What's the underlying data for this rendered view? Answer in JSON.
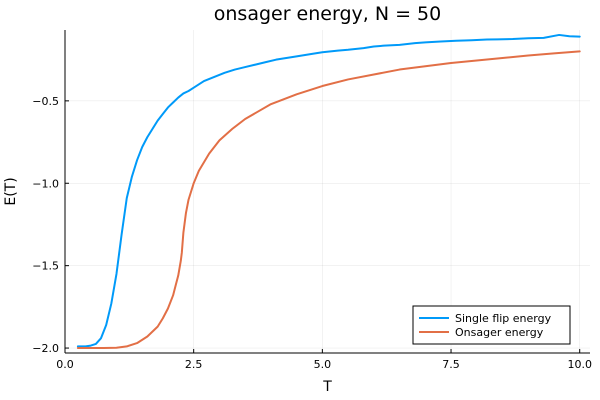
{
  "chart_data": {
    "type": "line",
    "title": "onsager energy, N = 50",
    "xlabel": "T",
    "ylabel": "E(T)",
    "xlim": [
      0,
      10.2
    ],
    "ylim": [
      -2.03,
      -0.07
    ],
    "xticks": [
      0.0,
      2.5,
      5.0,
      7.5,
      10.0
    ],
    "xtick_labels": [
      "0.0",
      "2.5",
      "5.0",
      "7.5",
      "10.0"
    ],
    "yticks": [
      -2.0,
      -1.5,
      -1.0,
      -0.5
    ],
    "ytick_labels": [
      "−2.0",
      "−1.5",
      "−1.0",
      "−0.5"
    ],
    "grid": true,
    "legend_position": "bottom-right",
    "series": [
      {
        "name": "Single flip energy",
        "color": "#009AF9",
        "x": [
          0.25,
          0.4,
          0.5,
          0.6,
          0.7,
          0.8,
          0.9,
          1.0,
          1.1,
          1.2,
          1.3,
          1.4,
          1.5,
          1.6,
          1.7,
          1.8,
          1.9,
          2.0,
          2.1,
          2.2,
          2.3,
          2.4,
          2.5,
          2.7,
          2.9,
          3.1,
          3.3,
          3.5,
          3.7,
          3.9,
          4.1,
          4.3,
          4.5,
          4.8,
          5.0,
          5.3,
          5.5,
          5.8,
          6.0,
          6.2,
          6.5,
          6.8,
          7.0,
          7.3,
          7.6,
          7.9,
          8.2,
          8.4,
          8.7,
          9.0,
          9.3,
          9.6,
          9.8,
          10.0
        ],
        "y": [
          -1.99,
          -1.99,
          -1.985,
          -1.975,
          -1.94,
          -1.86,
          -1.73,
          -1.55,
          -1.31,
          -1.09,
          -0.96,
          -0.86,
          -0.78,
          -0.72,
          -0.67,
          -0.62,
          -0.58,
          -0.54,
          -0.51,
          -0.48,
          -0.455,
          -0.44,
          -0.42,
          -0.38,
          -0.355,
          -0.33,
          -0.31,
          -0.295,
          -0.28,
          -0.265,
          -0.25,
          -0.24,
          -0.23,
          -0.215,
          -0.205,
          -0.195,
          -0.19,
          -0.18,
          -0.17,
          -0.165,
          -0.16,
          -0.15,
          -0.145,
          -0.14,
          -0.135,
          -0.132,
          -0.128,
          -0.127,
          -0.125,
          -0.12,
          -0.118,
          -0.1,
          -0.108,
          -0.11
        ]
      },
      {
        "name": "Onsager energy",
        "color": "#E26F46",
        "x": [
          0.25,
          0.5,
          0.75,
          1.0,
          1.2,
          1.4,
          1.6,
          1.8,
          1.9,
          2.0,
          2.1,
          2.15,
          2.2,
          2.25,
          2.27,
          2.3,
          2.35,
          2.4,
          2.5,
          2.6,
          2.8,
          3.0,
          3.25,
          3.5,
          3.75,
          4.0,
          4.5,
          5.0,
          5.5,
          6.0,
          6.5,
          7.0,
          7.5,
          8.0,
          8.5,
          9.0,
          9.5,
          10.0
        ],
        "y": [
          -2.0,
          -2.0,
          -2.0,
          -1.998,
          -1.99,
          -1.97,
          -1.93,
          -1.87,
          -1.82,
          -1.76,
          -1.68,
          -1.62,
          -1.56,
          -1.47,
          -1.42,
          -1.3,
          -1.18,
          -1.1,
          -1.0,
          -0.925,
          -0.82,
          -0.74,
          -0.67,
          -0.61,
          -0.565,
          -0.52,
          -0.46,
          -0.41,
          -0.37,
          -0.34,
          -0.31,
          -0.29,
          -0.27,
          -0.255,
          -0.24,
          -0.225,
          -0.212,
          -0.2
        ]
      }
    ]
  }
}
